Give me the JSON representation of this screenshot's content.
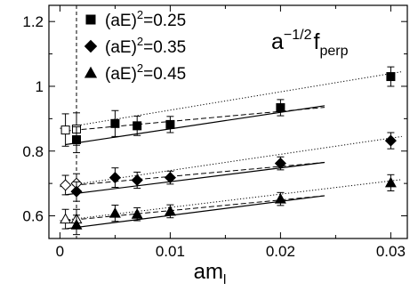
{
  "chart_data": {
    "type": "scatter",
    "annotation": {
      "base": "a",
      "exponent": "−1/2",
      "symbol": "f",
      "subscript": "perp"
    },
    "xlabel": {
      "base": "am",
      "subscript": "l"
    },
    "ylabel": "",
    "xlim": [
      -0.001,
      0.0315
    ],
    "ylim": [
      0.53,
      1.25
    ],
    "x_ticks": [
      0,
      0.01,
      0.02,
      0.03
    ],
    "x_tick_labels": [
      "0",
      "0.01",
      "0.02",
      "0.03"
    ],
    "y_ticks": [
      0.6,
      0.8,
      1.0,
      1.2
    ],
    "y_tick_labels": [
      "0.6",
      "0.8",
      "1",
      "1.2"
    ],
    "vertical_dashed_line_x": 0.0015,
    "legend_position": "top-left",
    "series": [
      {
        "name_base": "(aE)",
        "name_exp": "2",
        "name_val": "=0.25",
        "marker": "square",
        "x": [
          0.0015,
          0.005,
          0.007,
          0.01,
          0.02,
          0.03
        ],
        "y": [
          0.835,
          0.885,
          0.878,
          0.882,
          0.934,
          1.03
        ],
        "err": [
          0.04,
          0.04,
          0.03,
          0.025,
          0.025,
          0.03
        ],
        "extrapolated": {
          "x": [
            0.0005,
            0.0015
          ],
          "y": [
            0.865,
            0.868
          ],
          "err": [
            0.05,
            0.05
          ]
        },
        "fit_lines": [
          {
            "style": "solid",
            "x": [
              0.0005,
              0.024
            ],
            "y": [
              0.82,
              0.94
            ]
          },
          {
            "style": "dashed",
            "x": [
              0.0005,
              0.024
            ],
            "y": [
              0.862,
              0.935
            ]
          },
          {
            "style": "dotted",
            "x": [
              0.0,
              0.031
            ],
            "y": [
              0.87,
              1.045
            ]
          }
        ]
      },
      {
        "name_base": "(aE)",
        "name_exp": "2",
        "name_val": "=0.35",
        "marker": "diamond",
        "x": [
          0.0015,
          0.005,
          0.007,
          0.01,
          0.02,
          0.03
        ],
        "y": [
          0.675,
          0.718,
          0.71,
          0.718,
          0.762,
          0.832
        ],
        "err": [
          0.03,
          0.03,
          0.025,
          0.02,
          0.02,
          0.025
        ],
        "extrapolated": {
          "x": [
            0.0005,
            0.0015
          ],
          "y": [
            0.695,
            0.7
          ],
          "err": [
            0.03,
            0.03
          ]
        },
        "fit_lines": [
          {
            "style": "solid",
            "x": [
              0.0005,
              0.024
            ],
            "y": [
              0.665,
              0.765
            ]
          },
          {
            "style": "dashed",
            "x": [
              0.0005,
              0.024
            ],
            "y": [
              0.692,
              0.765
            ]
          },
          {
            "style": "dotted",
            "x": [
              0.0,
              0.031
            ],
            "y": [
              0.69,
              0.845
            ]
          }
        ]
      },
      {
        "name_base": "(aE)",
        "name_exp": "2",
        "name_val": "=0.45",
        "marker": "triangle",
        "x": [
          0.0015,
          0.005,
          0.007,
          0.01,
          0.02,
          0.03
        ],
        "y": [
          0.572,
          0.608,
          0.605,
          0.614,
          0.652,
          0.702
        ],
        "err": [
          0.03,
          0.025,
          0.02,
          0.02,
          0.02,
          0.025
        ],
        "extrapolated": {
          "x": [
            0.0005,
            0.0015
          ],
          "y": [
            0.59,
            0.59
          ],
          "err": [
            0.03,
            0.03
          ]
        },
        "fit_lines": [
          {
            "style": "solid",
            "x": [
              0.0005,
              0.024
            ],
            "y": [
              0.56,
              0.662
            ]
          },
          {
            "style": "dashed",
            "x": [
              0.0005,
              0.024
            ],
            "y": [
              0.585,
              0.662
            ]
          },
          {
            "style": "dotted",
            "x": [
              0.0,
              0.031
            ],
            "y": [
              0.585,
              0.712
            ]
          }
        ]
      }
    ]
  }
}
